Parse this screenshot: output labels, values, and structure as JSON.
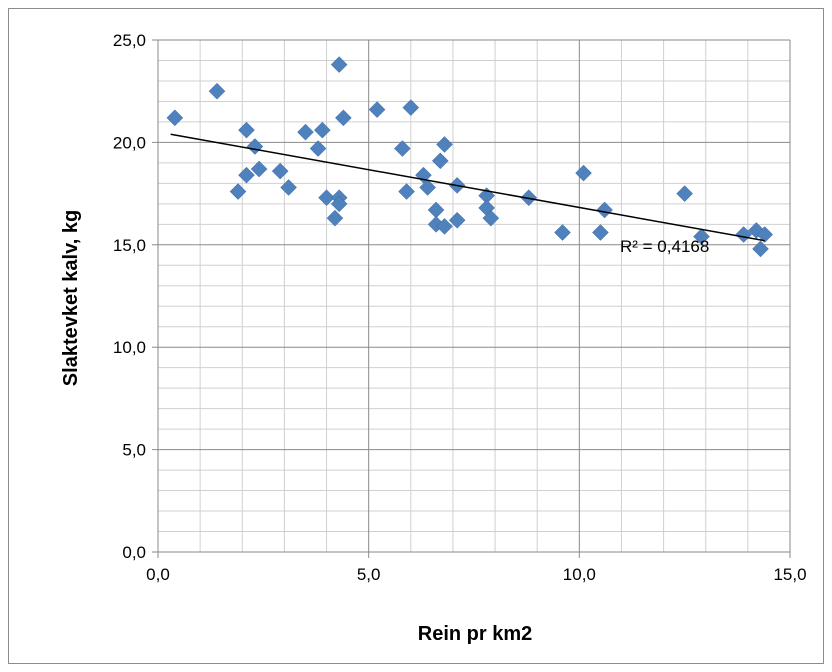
{
  "chart_data": {
    "type": "scatter",
    "xlabel": "Rein pr km2",
    "ylabel": "Slaktevket kalv, kg",
    "xlim": [
      0,
      15
    ],
    "ylim": [
      0,
      25
    ],
    "x_ticks": [
      "0,0",
      "5,0",
      "10,0",
      "15,0"
    ],
    "y_ticks": [
      "0,0",
      "5,0",
      "10,0",
      "15,0",
      "20,0",
      "25,0"
    ],
    "grid": true,
    "marker": "diamond",
    "marker_color": "#4f81bd",
    "trendline": {
      "type": "linear",
      "x": [
        0.3,
        14.4
      ],
      "y": [
        20.4,
        15.2
      ],
      "label": "R² = 0,4168",
      "color": "#000000"
    },
    "points": [
      [
        0.4,
        21.2
      ],
      [
        1.4,
        22.5
      ],
      [
        1.9,
        17.6
      ],
      [
        2.1,
        18.4
      ],
      [
        2.1,
        20.6
      ],
      [
        2.3,
        19.8
      ],
      [
        2.4,
        18.7
      ],
      [
        2.9,
        18.6
      ],
      [
        3.1,
        17.8
      ],
      [
        3.5,
        20.5
      ],
      [
        3.8,
        19.7
      ],
      [
        3.9,
        20.6
      ],
      [
        4.0,
        17.3
      ],
      [
        4.2,
        16.3
      ],
      [
        4.3,
        17.3
      ],
      [
        4.3,
        17.0
      ],
      [
        4.3,
        23.8
      ],
      [
        4.4,
        21.2
      ],
      [
        5.2,
        21.6
      ],
      [
        5.8,
        19.7
      ],
      [
        5.9,
        17.6
      ],
      [
        6.0,
        21.7
      ],
      [
        6.3,
        18.4
      ],
      [
        6.4,
        17.8
      ],
      [
        6.6,
        16.7
      ],
      [
        6.6,
        16.0
      ],
      [
        6.7,
        19.1
      ],
      [
        6.8,
        15.9
      ],
      [
        6.8,
        19.9
      ],
      [
        7.1,
        17.9
      ],
      [
        7.1,
        16.2
      ],
      [
        7.8,
        17.4
      ],
      [
        7.8,
        16.8
      ],
      [
        7.9,
        16.3
      ],
      [
        8.8,
        17.3
      ],
      [
        9.6,
        15.6
      ],
      [
        10.1,
        18.5
      ],
      [
        10.5,
        15.6
      ],
      [
        10.6,
        16.7
      ],
      [
        12.5,
        17.5
      ],
      [
        12.9,
        15.4
      ],
      [
        13.9,
        15.5
      ],
      [
        14.2,
        15.7
      ],
      [
        14.3,
        14.8
      ],
      [
        14.4,
        15.5
      ]
    ]
  }
}
